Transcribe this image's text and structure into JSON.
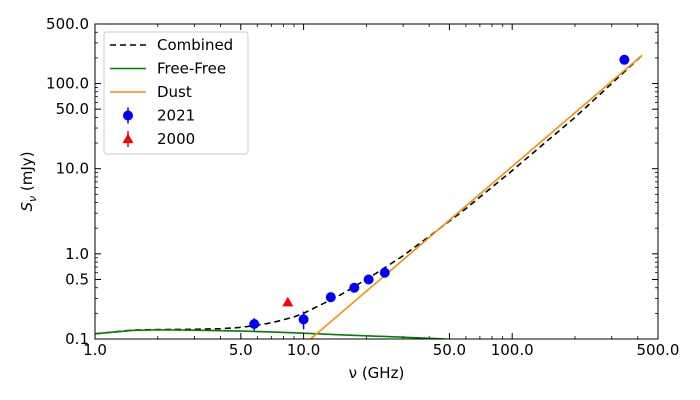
{
  "chart_data": {
    "type": "scatter",
    "xlabel": "ν (GHz)",
    "ylabel": "S",
    "ylabel_sub": "ν",
    "ylabel_unit": " (mJy)",
    "xscale": "log",
    "yscale": "log",
    "xlim": [
      1.0,
      500.0
    ],
    "ylim": [
      0.1,
      500.0
    ],
    "xticks": [
      {
        "value": 1.0,
        "label": "1.0"
      },
      {
        "value": 5.0,
        "label": "5.0"
      },
      {
        "value": 10.0,
        "label": "10.0"
      },
      {
        "value": 50.0,
        "label": "50.0"
      },
      {
        "value": 100.0,
        "label": "100.0"
      },
      {
        "value": 500.0,
        "label": "500.0"
      }
    ],
    "yticks": [
      {
        "value": 0.1,
        "label": "0.1"
      },
      {
        "value": 0.5,
        "label": "0.5"
      },
      {
        "value": 1.0,
        "label": "1.0"
      },
      {
        "value": 10.0,
        "label": "10.0"
      },
      {
        "value": 50.0,
        "label": "50.0"
      },
      {
        "value": 100.0,
        "label": "100.0"
      },
      {
        "value": 500.0,
        "label": "500.0"
      }
    ],
    "legend_position": "top-left",
    "series": [
      {
        "name": "Combined",
        "kind": "line",
        "style": "dashed",
        "color": "#000000",
        "x": [
          1.0,
          1.5,
          2.0,
          3.0,
          4.0,
          5.0,
          6.0,
          7.0,
          8.0,
          9.0,
          10.0,
          12.0,
          14.0,
          16.0,
          18.0,
          20.0,
          22.0,
          25.0,
          30.0,
          40.0,
          60.0,
          100.0,
          200.0,
          300.0,
          420.0
        ],
        "y": [
          0.115,
          0.127,
          0.129,
          0.13,
          0.132,
          0.137,
          0.145,
          0.155,
          0.168,
          0.182,
          0.2,
          0.25,
          0.3,
          0.36,
          0.43,
          0.5,
          0.58,
          0.71,
          0.95,
          1.6,
          3.4,
          9.5,
          40.0,
          100.0,
          215.0
        ]
      },
      {
        "name": "Free-Free",
        "kind": "line",
        "style": "solid",
        "color": "#008000",
        "x": [
          1.0,
          1.5,
          2.0,
          3.0,
          5.0,
          7.0,
          10.0,
          15.0,
          20.0,
          30.0,
          40.0,
          48.0
        ],
        "y": [
          0.115,
          0.126,
          0.128,
          0.127,
          0.124,
          0.121,
          0.117,
          0.112,
          0.109,
          0.105,
          0.102,
          0.1
        ]
      },
      {
        "name": "Dust",
        "kind": "line",
        "style": "solid",
        "color": "#ff8c00",
        "x": [
          10.8,
          420.0
        ],
        "y": [
          0.1,
          215.0
        ]
      },
      {
        "name": "2021",
        "kind": "points",
        "marker": "circle",
        "color": "#0000ff",
        "x": [
          5.8,
          10.0,
          13.5,
          17.5,
          20.5,
          24.5,
          345.0
        ],
        "y": [
          0.15,
          0.17,
          0.31,
          0.4,
          0.5,
          0.6,
          190.0
        ],
        "yerr": [
          0.025,
          0.04,
          0.02,
          0.02,
          0.025,
          0.03,
          20.0
        ]
      },
      {
        "name": "2000",
        "kind": "points",
        "marker": "triangle",
        "color": "#ff0000",
        "x": [
          8.4
        ],
        "y": [
          0.27
        ],
        "yerr": [
          0.0
        ]
      }
    ]
  }
}
